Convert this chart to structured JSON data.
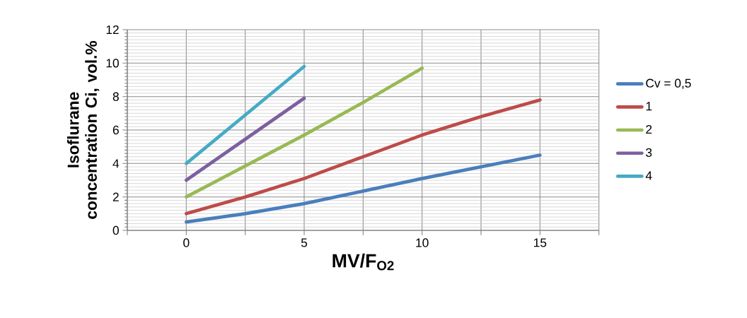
{
  "chart_data": {
    "type": "line",
    "xlabel": "MV/F$_{O2}$",
    "ylabel": "Isoflurane concentration Ci, vol.%",
    "xlim": [
      -2.5,
      17.5
    ],
    "xticks": [
      {
        "value": -2.5,
        "label": null
      },
      0,
      {
        "value": 2.5,
        "label": null
      },
      5,
      {
        "value": 7.5,
        "label": null
      },
      10,
      {
        "value": 12.5,
        "label": null
      },
      15,
      {
        "value": 17.5,
        "label": null
      }
    ],
    "ylim": [
      0,
      12
    ],
    "yticks": [
      0,
      2,
      4,
      6,
      8,
      10,
      12
    ],
    "grid": true,
    "legend": "right",
    "marker": "none",
    "line_style": "solid",
    "series": [
      {
        "name": "Cv = 0,5",
        "color": "#4a7ebb",
        "x": [
          0,
          2.5,
          5,
          7.5,
          10,
          12.5,
          15
        ],
        "values": [
          0.5,
          1.0,
          1.6,
          2.35,
          3.1,
          3.8,
          4.5
        ]
      },
      {
        "name": "1",
        "color": "#be4b48",
        "x": [
          0,
          2.5,
          5,
          7.5,
          10,
          12.5,
          15
        ],
        "values": [
          1.0,
          2.0,
          3.1,
          4.4,
          5.7,
          6.8,
          7.8
        ]
      },
      {
        "name": "2",
        "color": "#98b954",
        "x": [
          0,
          2.5,
          5,
          7.5,
          10
        ],
        "values": [
          2.0,
          3.85,
          5.7,
          7.65,
          9.7
        ]
      },
      {
        "name": "3",
        "color": "#7d60a0",
        "x": [
          0,
          2.5,
          5
        ],
        "values": [
          3.0,
          5.45,
          7.9
        ]
      },
      {
        "name": "4",
        "color": "#46aac5",
        "x": [
          0,
          2.5,
          5
        ],
        "values": [
          4.0,
          6.9,
          9.8
        ]
      }
    ]
  }
}
